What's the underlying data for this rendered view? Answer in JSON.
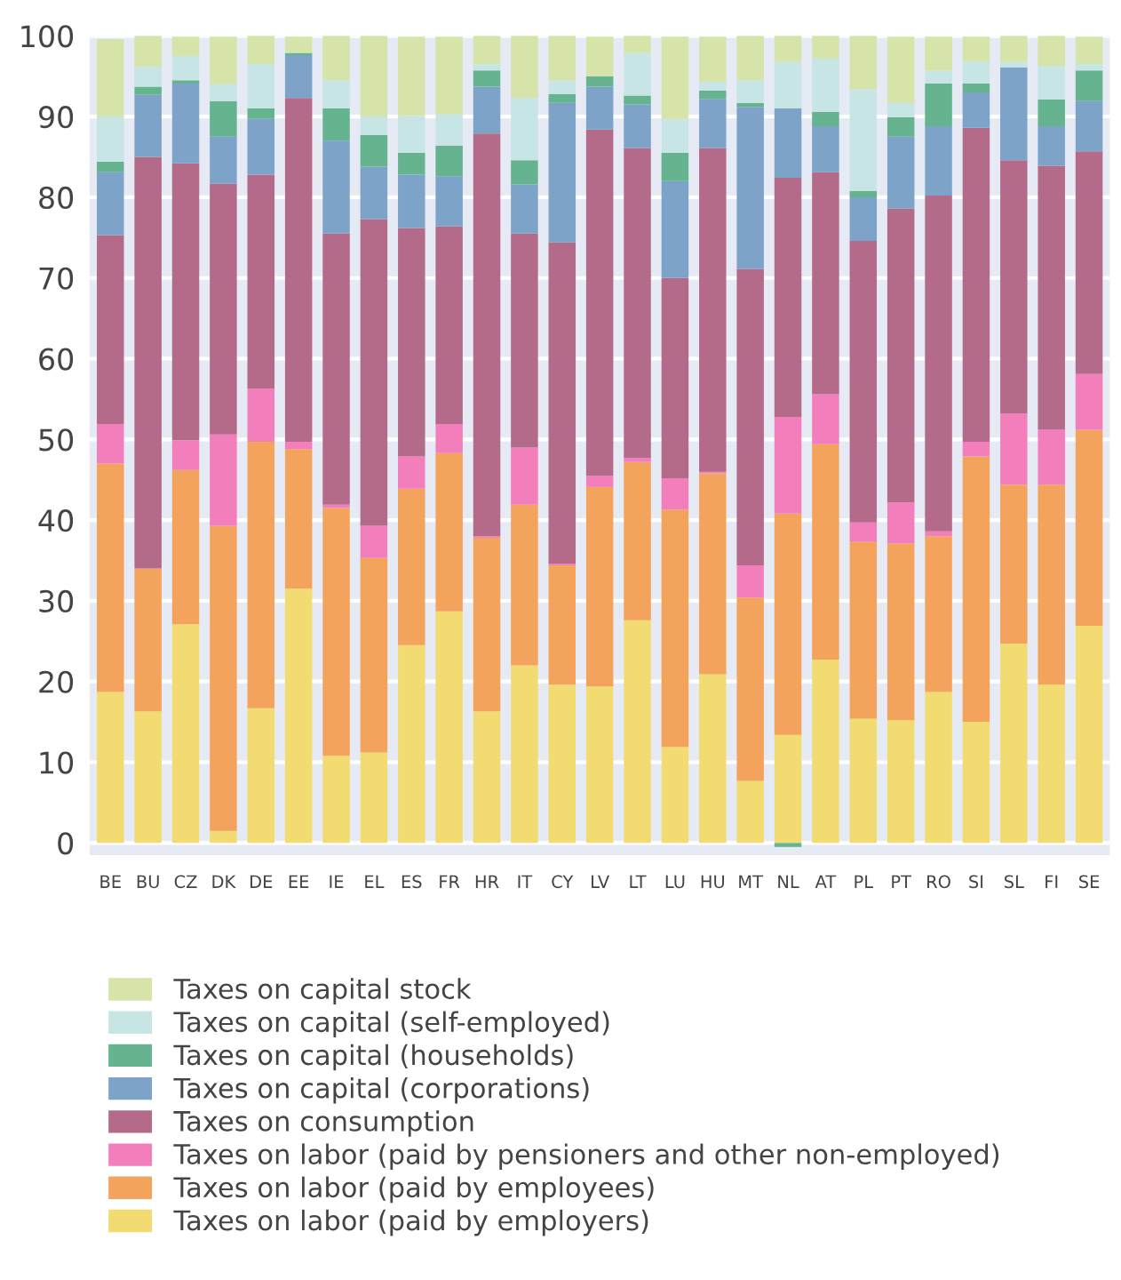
{
  "chart_data": {
    "type": "bar",
    "stacked": true,
    "categories": [
      "BE",
      "BU",
      "CZ",
      "DK",
      "DE",
      "EE",
      "IE",
      "EL",
      "ES",
      "FR",
      "HR",
      "IT",
      "CY",
      "LV",
      "LT",
      "LU",
      "HU",
      "MT",
      "NL",
      "AT",
      "PL",
      "PT",
      "RO",
      "SI",
      "SL",
      "FI",
      "SE"
    ],
    "series": [
      {
        "name": "Taxes on labor (paid by employers)",
        "color": "#f2dc72",
        "values": [
          18.7,
          16.3,
          27.1,
          1.5,
          16.7,
          31.5,
          10.8,
          11.2,
          24.5,
          28.7,
          16.3,
          22.0,
          19.6,
          19.4,
          27.6,
          11.9,
          20.9,
          7.7,
          13.4,
          22.7,
          15.4,
          15.2,
          18.7,
          15.0,
          24.7,
          19.6,
          26.9
        ]
      },
      {
        "name": "Taxes on labor (paid by employees)",
        "color": "#f4a35d",
        "values": [
          28.3,
          17.7,
          19.1,
          37.8,
          33.0,
          17.3,
          30.7,
          24.1,
          19.4,
          19.6,
          21.5,
          19.9,
          14.8,
          24.7,
          19.6,
          29.4,
          24.9,
          22.7,
          27.4,
          26.7,
          21.9,
          21.9,
          19.3,
          32.9,
          19.7,
          24.8,
          24.3
        ]
      },
      {
        "name": "Taxes on labor (paid by pensioners and other non-employed)",
        "color": "#f27fbc",
        "values": [
          4.9,
          0,
          3.7,
          11.3,
          6.6,
          0.9,
          0.4,
          4.0,
          4.0,
          3.6,
          0.2,
          7.1,
          0.2,
          1.4,
          0.5,
          3.9,
          0.2,
          4.0,
          12.0,
          6.2,
          2.4,
          5.1,
          0.6,
          1.8,
          8.8,
          6.8,
          6.9
        ]
      },
      {
        "name": "Taxes on consumption",
        "color": "#b36b89",
        "values": [
          23.4,
          51.0,
          34.3,
          31.1,
          26.5,
          42.6,
          33.6,
          38.0,
          28.3,
          24.5,
          49.9,
          26.5,
          39.8,
          42.9,
          38.4,
          24.8,
          40.1,
          36.7,
          29.6,
          27.5,
          34.9,
          36.4,
          41.6,
          38.9,
          31.4,
          32.7,
          27.6
        ]
      },
      {
        "name": "Taxes on capital (corporations)",
        "color": "#7ea3c9",
        "values": [
          7.8,
          7.7,
          9.9,
          5.8,
          6.9,
          5.3,
          11.5,
          6.5,
          6.6,
          6.2,
          5.8,
          6.1,
          17.3,
          5.3,
          5.4,
          12.0,
          6.1,
          20.1,
          8.6,
          5.7,
          5.4,
          8.9,
          8.6,
          4.4,
          11.5,
          4.9,
          6.2
        ]
      },
      {
        "name": "Taxes on capital (households)",
        "color": "#66b48f",
        "values": [
          1.3,
          1.0,
          0.4,
          4.4,
          1.3,
          0.3,
          4.0,
          3.9,
          2.7,
          3.8,
          2.0,
          3.0,
          1.1,
          1.3,
          1.1,
          3.5,
          1.0,
          0.5,
          -0.5,
          1.8,
          0.8,
          2.4,
          5.3,
          1.1,
          0,
          3.3,
          3.8
        ]
      },
      {
        "name": "Taxes on capital (self-employed)",
        "color": "#c8e5e5",
        "values": [
          5.6,
          2.5,
          3.0,
          2.1,
          5.5,
          0,
          3.5,
          2.3,
          4.6,
          3.9,
          0.8,
          7.7,
          1.7,
          0,
          5.3,
          4.2,
          1.1,
          2.8,
          5.8,
          6.6,
          12.6,
          1.8,
          1.6,
          2.7,
          0.7,
          4.2,
          0.8
        ]
      },
      {
        "name": "Taxes on capital stock",
        "color": "#d6e3a9",
        "values": [
          9.6,
          3.8,
          2.4,
          5.9,
          3.5,
          2.0,
          5.5,
          10.0,
          9.8,
          9.6,
          3.5,
          7.7,
          5.5,
          4.9,
          2.1,
          10.2,
          5.6,
          5.5,
          3.2,
          2.8,
          6.6,
          8.2,
          4.2,
          3.1,
          3.2,
          3.7,
          3.4
        ]
      }
    ],
    "ylim": [
      -1.5,
      100
    ],
    "yticks": [
      0,
      10,
      20,
      30,
      40,
      50,
      60,
      70,
      80,
      90,
      100
    ],
    "grid": "y",
    "legend": "bottom"
  }
}
